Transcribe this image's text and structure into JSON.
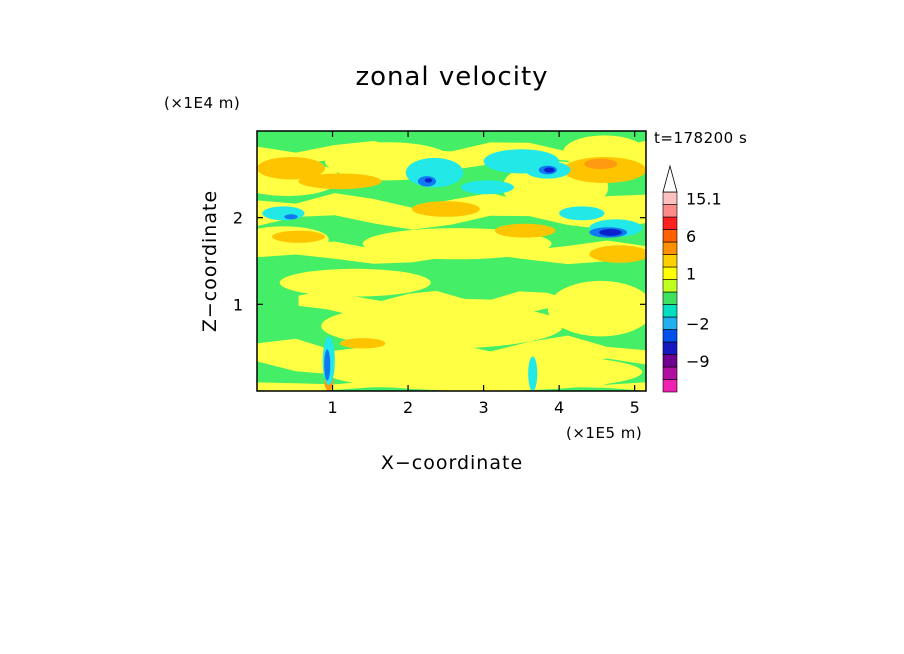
{
  "chart_data": {
    "type": "heatmap",
    "title": "zonal velocity",
    "xlabel": "X−coordinate",
    "ylabel": "Z−coordinate",
    "x_unit_label": "(×1E5 m)",
    "y_unit_label": "(×1E4 m)",
    "time_label": "t=178200 s",
    "xlim": [
      0,
      5.15
    ],
    "ylim": [
      0,
      3.0
    ],
    "x_ticks": [
      {
        "value": 1,
        "label": "1"
      },
      {
        "value": 2,
        "label": "2"
      },
      {
        "value": 3,
        "label": "3"
      },
      {
        "value": 4,
        "label": "4"
      },
      {
        "value": 5,
        "label": "5"
      }
    ],
    "y_ticks": [
      {
        "value": 1,
        "label": "1"
      },
      {
        "value": 2,
        "label": "2"
      }
    ],
    "colorbar": {
      "bins": [
        {
          "color": "#f020b0",
          "label": ""
        },
        {
          "color": "#b010a0",
          "label": ""
        },
        {
          "color": "#700090",
          "label": "−9"
        },
        {
          "color": "#1818c0",
          "label": ""
        },
        {
          "color": "#0050f0",
          "label": ""
        },
        {
          "color": "#20b0f0",
          "label": "−2"
        },
        {
          "color": "#00e0c0",
          "label": ""
        },
        {
          "color": "#40e060",
          "label": ""
        },
        {
          "color": "#c0ff20",
          "label": ""
        },
        {
          "color": "#ffff00",
          "label": "1"
        },
        {
          "color": "#ffd000",
          "label": ""
        },
        {
          "color": "#ff9000",
          "label": ""
        },
        {
          "color": "#ff6000",
          "label": "6"
        },
        {
          "color": "#ff2020",
          "label": ""
        },
        {
          "color": "#ff8a8a",
          "label": ""
        },
        {
          "color": "#ffc0c0",
          "label": "15.1"
        },
        {
          "color": "#ffffff",
          "label": ""
        }
      ]
    },
    "field_colors": {
      "background": "#44ee66",
      "positive_weak": "#ffff44",
      "positive_mid": "#ffc400",
      "positive_strong": "#ff9a10",
      "negative_weak": "#22e8e8",
      "negative_mid": "#1078f0",
      "negative_strong": "#0a22cc"
    },
    "bands": [
      {
        "kind": "positive_weak",
        "x": [
          0.0,
          5.15
        ],
        "z0": 2.62,
        "z1": 2.82
      },
      {
        "kind": "positive_weak",
        "x": [
          0.0,
          5.15
        ],
        "z0": 1.95,
        "z1": 2.2
      },
      {
        "kind": "positive_weak",
        "x": [
          0.0,
          5.15
        ],
        "z0": 1.52,
        "z1": 1.68
      },
      {
        "kind": "positive_weak",
        "x": [
          0.55,
          4.2
        ],
        "z0": 0.92,
        "z1": 1.1
      },
      {
        "kind": "positive_weak",
        "x": [
          0.0,
          5.15
        ],
        "z0": 0.28,
        "z1": 0.55
      },
      {
        "kind": "positive_weak",
        "x": [
          0.0,
          5.15
        ],
        "z0": 0.02,
        "z1": 0.1
      }
    ],
    "blobs": [
      {
        "kind": "positive_weak",
        "x": 0.4,
        "z": 2.45,
        "rx": 0.7,
        "rz": 0.2
      },
      {
        "kind": "positive_weak",
        "x": 1.75,
        "z": 2.65,
        "rx": 0.85,
        "rz": 0.22
      },
      {
        "kind": "positive_weak",
        "x": 3.95,
        "z": 2.35,
        "rx": 0.7,
        "rz": 0.3
      },
      {
        "kind": "positive_weak",
        "x": 4.6,
        "z": 2.75,
        "rx": 0.55,
        "rz": 0.2
      },
      {
        "kind": "positive_weak",
        "x": 2.65,
        "z": 1.7,
        "rx": 1.25,
        "rz": 0.18
      },
      {
        "kind": "positive_weak",
        "x": 1.3,
        "z": 1.25,
        "rx": 1.0,
        "rz": 0.16
      },
      {
        "kind": "positive_weak",
        "x": 2.45,
        "z": 0.75,
        "rx": 1.6,
        "rz": 0.26
      },
      {
        "kind": "positive_weak",
        "x": 4.55,
        "z": 0.95,
        "rx": 0.7,
        "rz": 0.32
      },
      {
        "kind": "positive_weak",
        "x": 3.0,
        "z": 0.22,
        "rx": 2.1,
        "rz": 0.22
      },
      {
        "kind": "positive_weak",
        "x": 0.35,
        "z": 1.75,
        "rx": 0.6,
        "rz": 0.15
      },
      {
        "kind": "positive_mid",
        "x": 0.45,
        "z": 2.57,
        "rx": 0.45,
        "rz": 0.13
      },
      {
        "kind": "positive_mid",
        "x": 1.1,
        "z": 2.42,
        "rx": 0.55,
        "rz": 0.09
      },
      {
        "kind": "positive_mid",
        "x": 2.5,
        "z": 2.1,
        "rx": 0.45,
        "rz": 0.09
      },
      {
        "kind": "positive_mid",
        "x": 4.6,
        "z": 2.55,
        "rx": 0.55,
        "rz": 0.15
      },
      {
        "kind": "positive_mid",
        "x": 4.8,
        "z": 1.58,
        "rx": 0.4,
        "rz": 0.1
      },
      {
        "kind": "positive_mid",
        "x": 3.55,
        "z": 1.85,
        "rx": 0.4,
        "rz": 0.08
      },
      {
        "kind": "positive_mid",
        "x": 0.55,
        "z": 1.78,
        "rx": 0.35,
        "rz": 0.07
      },
      {
        "kind": "positive_mid",
        "x": 1.4,
        "z": 0.55,
        "rx": 0.3,
        "rz": 0.06
      },
      {
        "kind": "positive_strong",
        "x": 4.55,
        "z": 2.62,
        "rx": 0.22,
        "rz": 0.06
      },
      {
        "kind": "positive_strong",
        "x": 0.95,
        "z": 0.12,
        "rx": 0.06,
        "rz": 0.12
      },
      {
        "kind": "negative_weak",
        "x": 2.35,
        "z": 2.52,
        "rx": 0.38,
        "rz": 0.17
      },
      {
        "kind": "negative_weak",
        "x": 3.5,
        "z": 2.65,
        "rx": 0.5,
        "rz": 0.14
      },
      {
        "kind": "negative_weak",
        "x": 3.05,
        "z": 2.35,
        "rx": 0.35,
        "rz": 0.08
      },
      {
        "kind": "negative_weak",
        "x": 0.35,
        "z": 2.05,
        "rx": 0.28,
        "rz": 0.08
      },
      {
        "kind": "negative_weak",
        "x": 4.75,
        "z": 1.88,
        "rx": 0.35,
        "rz": 0.1
      },
      {
        "kind": "negative_weak",
        "x": 4.3,
        "z": 2.05,
        "rx": 0.3,
        "rz": 0.08
      },
      {
        "kind": "negative_weak",
        "x": 3.85,
        "z": 2.55,
        "rx": 0.3,
        "rz": 0.1
      },
      {
        "kind": "negative_weak",
        "x": 0.95,
        "z": 0.35,
        "rx": 0.08,
        "rz": 0.28
      },
      {
        "kind": "negative_weak",
        "x": 3.65,
        "z": 0.2,
        "rx": 0.06,
        "rz": 0.2
      },
      {
        "kind": "negative_mid",
        "x": 2.25,
        "z": 2.42,
        "rx": 0.12,
        "rz": 0.06
      },
      {
        "kind": "negative_mid",
        "x": 3.85,
        "z": 2.55,
        "rx": 0.12,
        "rz": 0.05
      },
      {
        "kind": "negative_mid",
        "x": 4.65,
        "z": 1.83,
        "rx": 0.25,
        "rz": 0.06
      },
      {
        "kind": "negative_mid",
        "x": 0.45,
        "z": 2.01,
        "rx": 0.09,
        "rz": 0.03
      },
      {
        "kind": "negative_mid",
        "x": 0.93,
        "z": 0.3,
        "rx": 0.04,
        "rz": 0.18
      },
      {
        "kind": "negative_strong",
        "x": 4.68,
        "z": 1.83,
        "rx": 0.15,
        "rz": 0.04
      },
      {
        "kind": "negative_strong",
        "x": 3.87,
        "z": 2.55,
        "rx": 0.07,
        "rz": 0.03
      },
      {
        "kind": "negative_strong",
        "x": 2.27,
        "z": 2.43,
        "rx": 0.05,
        "rz": 0.025
      }
    ]
  }
}
